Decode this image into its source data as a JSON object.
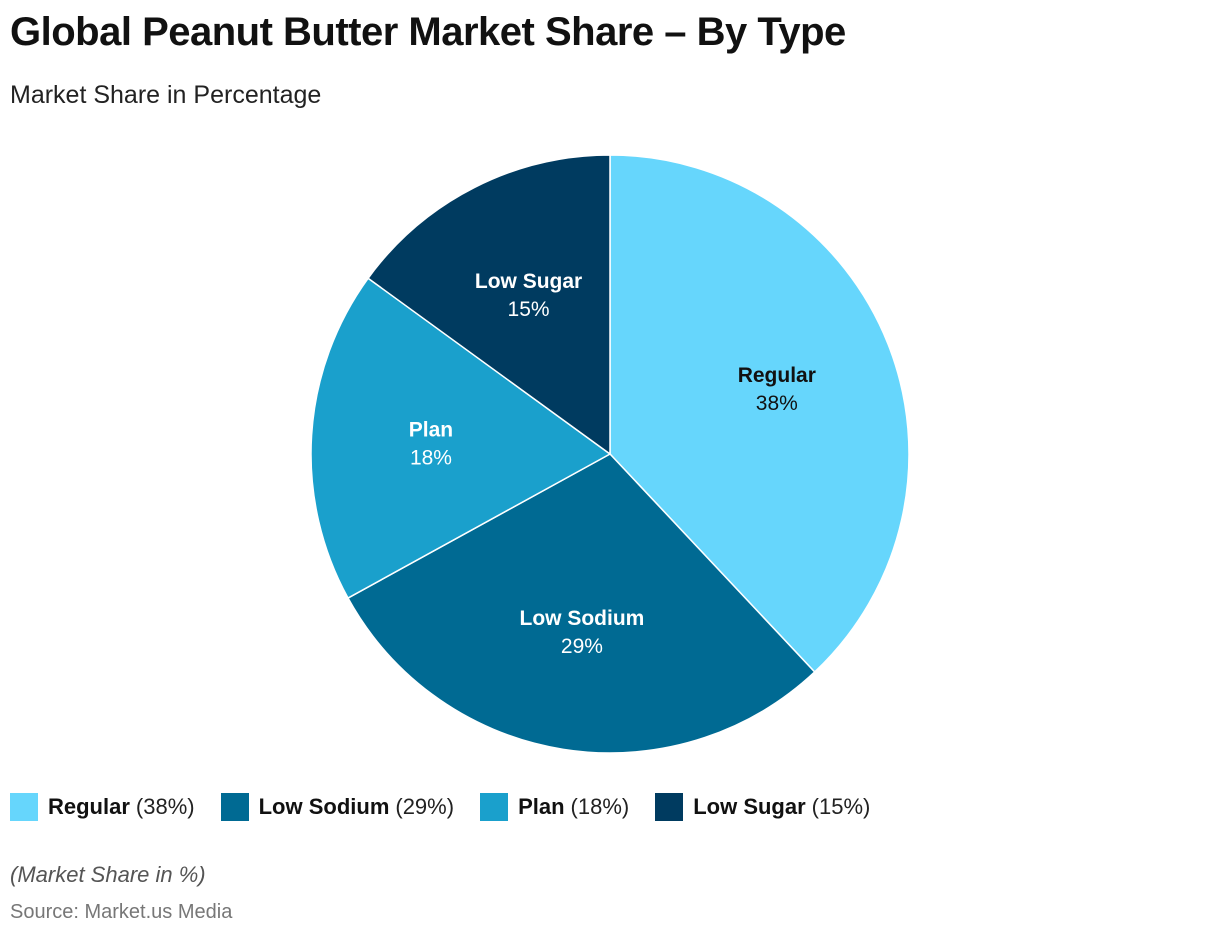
{
  "chart_data": {
    "type": "pie",
    "title": "Global Peanut Butter Market Share – By Type",
    "subtitle": "Market Share in Percentage",
    "categories": [
      "Regular",
      "Low Sodium",
      "Plan",
      "Low Sugar"
    ],
    "values": [
      38,
      29,
      18,
      15
    ],
    "value_labels": [
      "38%",
      "29%",
      "18%",
      "15%"
    ],
    "colors": [
      "#66d6fc",
      "#006a93",
      "#1aa0cc",
      "#003b60"
    ],
    "label_colors": [
      "#111111",
      "#ffffff",
      "#ffffff",
      "#ffffff"
    ],
    "legend": {
      "placement": "bottom-left",
      "entries": [
        {
          "name": "Regular",
          "value_text": "(38%)"
        },
        {
          "name": "Low Sodium",
          "value_text": "(29%)"
        },
        {
          "name": "Plan",
          "value_text": "(18%)"
        },
        {
          "name": "Low Sugar",
          "value_text": "(15%)"
        }
      ]
    },
    "footnote": "(Market Share in %)",
    "source": "Source: Market.us Media"
  }
}
